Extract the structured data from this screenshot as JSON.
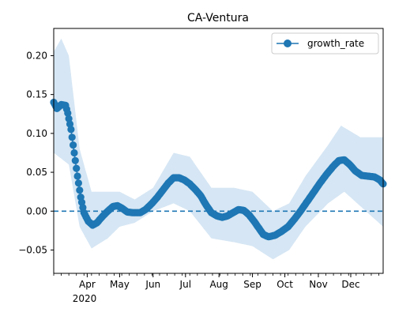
{
  "chart_data": {
    "type": "line",
    "title": "CA-Ventura",
    "xlabel": "",
    "ylabel": "",
    "x_tick_labels": [
      "Apr",
      "May",
      "Jun",
      "Jul",
      "Aug",
      "Sep",
      "Oct",
      "Nov",
      "Dec"
    ],
    "x_tick_dates": [
      "2020-04-01",
      "2020-05-01",
      "2020-06-01",
      "2020-07-01",
      "2020-08-01",
      "2020-09-01",
      "2020-10-01",
      "2020-11-01",
      "2020-12-01"
    ],
    "x_year_label": "2020",
    "xlim": [
      "2020-03-01",
      "2020-12-31"
    ],
    "ylim": [
      -0.08,
      0.235
    ],
    "y_ticks": [
      -0.05,
      0.0,
      0.05,
      0.1,
      0.15,
      0.2
    ],
    "y_tick_labels": [
      "−0.05",
      "0.00",
      "0.05",
      "0.10",
      "0.15",
      "0.20"
    ],
    "reference_line": {
      "y": 0.0,
      "style": "dashed"
    },
    "legend": {
      "position": "top-right",
      "label": "growth_rate"
    },
    "colors": {
      "series": "#1f77b4",
      "band": "#d6e6f4"
    },
    "series": [
      {
        "name": "growth_rate",
        "anchors": [
          [
            "2020-03-01",
            0.14
          ],
          [
            "2020-03-04",
            0.132
          ],
          [
            "2020-03-08",
            0.137
          ],
          [
            "2020-03-12",
            0.136
          ],
          [
            "2020-03-14",
            0.126
          ],
          [
            "2020-03-17",
            0.105
          ],
          [
            "2020-03-20",
            0.075
          ],
          [
            "2020-03-23",
            0.045
          ],
          [
            "2020-03-26",
            0.018
          ],
          [
            "2020-03-29",
            -0.002
          ],
          [
            "2020-04-02",
            -0.013
          ],
          [
            "2020-04-06",
            -0.018
          ],
          [
            "2020-04-10",
            -0.015
          ],
          [
            "2020-04-15",
            -0.007
          ],
          [
            "2020-04-20",
            0.0
          ],
          [
            "2020-04-25",
            0.006
          ],
          [
            "2020-04-29",
            0.007
          ],
          [
            "2020-05-03",
            0.004
          ],
          [
            "2020-05-08",
            -0.001
          ],
          [
            "2020-05-13",
            -0.002
          ],
          [
            "2020-05-20",
            -0.002
          ],
          [
            "2020-05-25",
            0.002
          ],
          [
            "2020-05-31",
            0.01
          ],
          [
            "2020-06-05",
            0.018
          ],
          [
            "2020-06-10",
            0.027
          ],
          [
            "2020-06-15",
            0.036
          ],
          [
            "2020-06-20",
            0.043
          ],
          [
            "2020-06-25",
            0.043
          ],
          [
            "2020-06-30",
            0.04
          ],
          [
            "2020-07-05",
            0.035
          ],
          [
            "2020-07-10",
            0.028
          ],
          [
            "2020-07-15",
            0.02
          ],
          [
            "2020-07-20",
            0.008
          ],
          [
            "2020-07-25",
            -0.002
          ],
          [
            "2020-07-30",
            -0.006
          ],
          [
            "2020-08-04",
            -0.008
          ],
          [
            "2020-08-09",
            -0.006
          ],
          [
            "2020-08-14",
            -0.002
          ],
          [
            "2020-08-19",
            0.002
          ],
          [
            "2020-08-24",
            0.001
          ],
          [
            "2020-08-29",
            -0.005
          ],
          [
            "2020-09-03",
            -0.014
          ],
          [
            "2020-09-07",
            -0.022
          ],
          [
            "2020-09-11",
            -0.03
          ],
          [
            "2020-09-16",
            -0.033
          ],
          [
            "2020-09-22",
            -0.031
          ],
          [
            "2020-09-28",
            -0.026
          ],
          [
            "2020-10-04",
            -0.02
          ],
          [
            "2020-10-10",
            -0.01
          ],
          [
            "2020-10-16",
            0.001
          ],
          [
            "2020-10-22",
            0.013
          ],
          [
            "2020-10-28",
            0.025
          ],
          [
            "2020-11-03",
            0.037
          ],
          [
            "2020-11-09",
            0.048
          ],
          [
            "2020-11-15",
            0.058
          ],
          [
            "2020-11-20",
            0.065
          ],
          [
            "2020-11-25",
            0.066
          ],
          [
            "2020-11-30",
            0.06
          ],
          [
            "2020-12-05",
            0.052
          ],
          [
            "2020-12-11",
            0.046
          ],
          [
            "2020-12-17",
            0.045
          ],
          [
            "2020-12-23",
            0.044
          ],
          [
            "2020-12-28",
            0.04
          ],
          [
            "2020-12-31",
            0.035
          ]
        ],
        "band_lower": [
          [
            "2020-03-01",
            0.075
          ],
          [
            "2020-03-15",
            0.06
          ],
          [
            "2020-03-25",
            -0.02
          ],
          [
            "2020-04-05",
            -0.048
          ],
          [
            "2020-04-20",
            -0.035
          ],
          [
            "2020-05-01",
            -0.02
          ],
          [
            "2020-05-15",
            -0.015
          ],
          [
            "2020-06-01",
            0.0
          ],
          [
            "2020-06-20",
            0.01
          ],
          [
            "2020-07-05",
            0.0
          ],
          [
            "2020-07-25",
            -0.035
          ],
          [
            "2020-08-15",
            -0.04
          ],
          [
            "2020-09-01",
            -0.045
          ],
          [
            "2020-09-20",
            -0.062
          ],
          [
            "2020-10-05",
            -0.05
          ],
          [
            "2020-10-20",
            -0.02
          ],
          [
            "2020-11-10",
            0.01
          ],
          [
            "2020-11-25",
            0.025
          ],
          [
            "2020-12-15",
            0.0
          ],
          [
            "2020-12-31",
            -0.02
          ]
        ],
        "band_upper": [
          [
            "2020-03-01",
            0.205
          ],
          [
            "2020-03-08",
            0.222
          ],
          [
            "2020-03-15",
            0.2
          ],
          [
            "2020-03-25",
            0.08
          ],
          [
            "2020-04-05",
            0.025
          ],
          [
            "2020-04-20",
            0.025
          ],
          [
            "2020-05-01",
            0.025
          ],
          [
            "2020-05-15",
            0.015
          ],
          [
            "2020-06-01",
            0.03
          ],
          [
            "2020-06-20",
            0.075
          ],
          [
            "2020-07-05",
            0.07
          ],
          [
            "2020-07-25",
            0.03
          ],
          [
            "2020-08-15",
            0.03
          ],
          [
            "2020-09-01",
            0.025
          ],
          [
            "2020-09-20",
            0.0
          ],
          [
            "2020-10-05",
            0.01
          ],
          [
            "2020-10-20",
            0.045
          ],
          [
            "2020-11-10",
            0.085
          ],
          [
            "2020-11-22",
            0.11
          ],
          [
            "2020-12-10",
            0.095
          ],
          [
            "2020-12-31",
            0.095
          ]
        ]
      }
    ]
  }
}
